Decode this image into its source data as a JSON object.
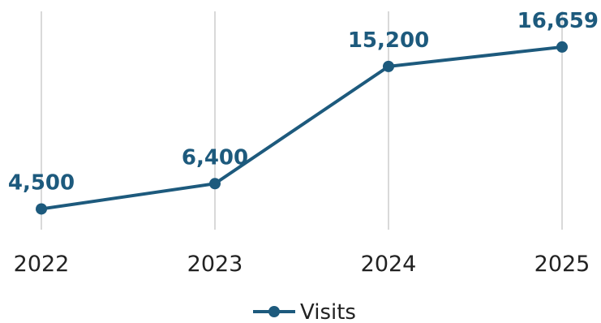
{
  "colors": {
    "series": "#1d5a7d",
    "grid": "#d9d9d9",
    "text": "#222222"
  },
  "chart_data": {
    "type": "line",
    "x": [
      "2022",
      "2023",
      "2024",
      "2025"
    ],
    "series": [
      {
        "name": "Visits",
        "values": [
          4500,
          6400,
          15200,
          16659
        ],
        "labels": [
          "4,500",
          "6,400",
          "15,200",
          "16,659"
        ]
      }
    ],
    "ylim": [
      0,
      16659
    ],
    "grid": "vertical",
    "legend": "bottom-center",
    "title": "",
    "xlabel": "",
    "ylabel": ""
  }
}
